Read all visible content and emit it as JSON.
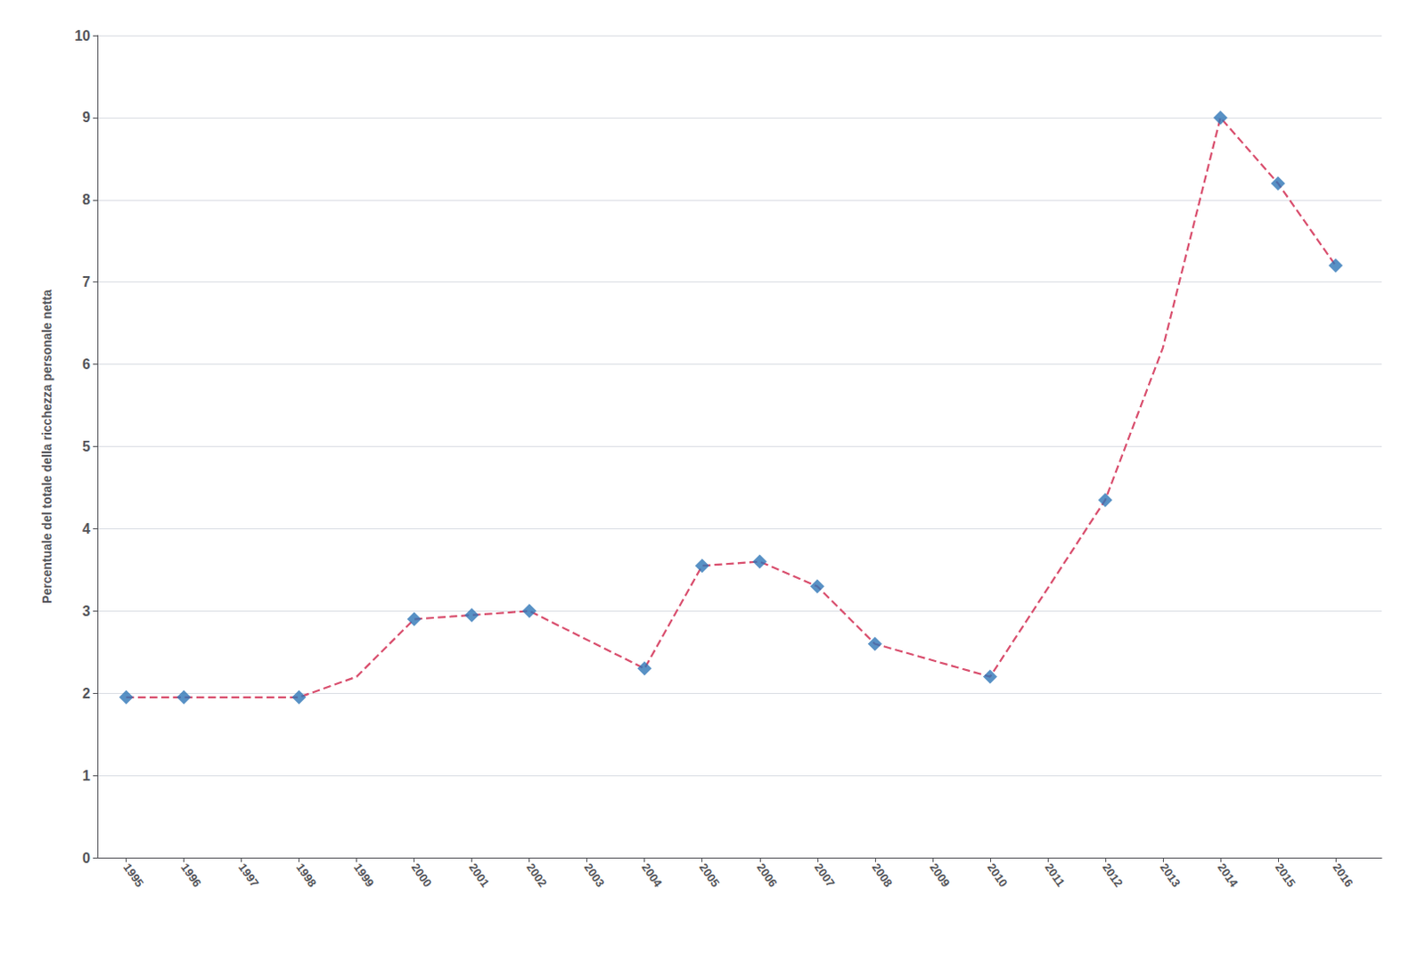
{
  "chart_data": {
    "type": "line",
    "y_label": "Percentuale del totale della ricchezza personale netta",
    "xlim": [
      1994.5,
      2016.8
    ],
    "xticks": [
      1995,
      1996,
      1997,
      1998,
      1999,
      2000,
      2001,
      2002,
      2003,
      2004,
      2005,
      2006,
      2007,
      2008,
      2009,
      2010,
      2011,
      2012,
      2013,
      2014,
      2015,
      2016
    ],
    "ylim": [
      0,
      10
    ],
    "yticks": [
      0,
      1,
      2,
      3,
      4,
      5,
      6,
      7,
      8,
      9,
      10
    ],
    "grid": true,
    "series": [
      {
        "type": "line",
        "color": "#d94f6e",
        "line_style": "dashed",
        "x": [
          1995,
          1996,
          1998,
          1999,
          2000,
          2001,
          2002,
          2004,
          2005,
          2006,
          2007,
          2008,
          2010,
          2012,
          2013,
          2014,
          2015,
          2016
        ],
        "values": [
          1.95,
          1.95,
          1.95,
          2.2,
          2.9,
          2.95,
          3.0,
          2.3,
          3.55,
          3.6,
          3.3,
          2.6,
          2.2,
          4.35,
          6.2,
          9.0,
          8.2,
          7.2
        ]
      },
      {
        "type": "scatter",
        "color": "#2e75b6",
        "marker": "diamond",
        "x": [
          1995,
          1996,
          1998,
          2000,
          2001,
          2002,
          2004,
          2005,
          2006,
          2007,
          2008,
          2010,
          2012,
          2014,
          2015,
          2016
        ],
        "values": [
          1.95,
          1.95,
          1.95,
          2.9,
          2.95,
          3.0,
          2.3,
          3.55,
          3.6,
          3.3,
          2.6,
          2.2,
          4.35,
          9.0,
          8.2,
          7.2
        ]
      }
    ]
  }
}
